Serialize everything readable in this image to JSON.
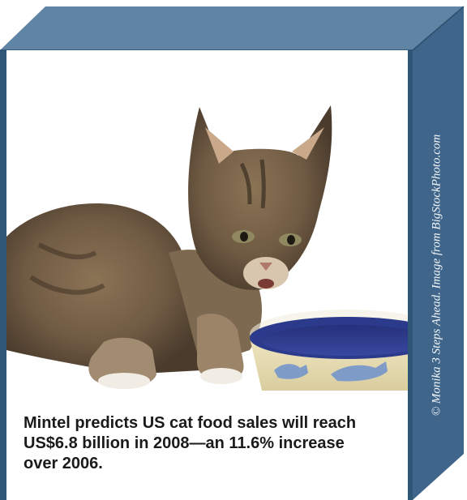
{
  "caption": "Mintel predicts US cat food sales will reach US$6.8 billion in 2008—an 11.6% increase over 2006.",
  "photo_credit": "© Monika 3 Steps Ahead. Image from BigStockPhoto.com",
  "colors": {
    "box_top": "#5f84a4",
    "box_side": "#3f668a",
    "box_edge": "#2d5677",
    "caption_text": "#1a1a1a",
    "credit_text": "#f4f7fa"
  },
  "image": {
    "subject": "kitten-eating-from-bowl",
    "bowl_decoration": "blue-cat-silhouettes"
  }
}
